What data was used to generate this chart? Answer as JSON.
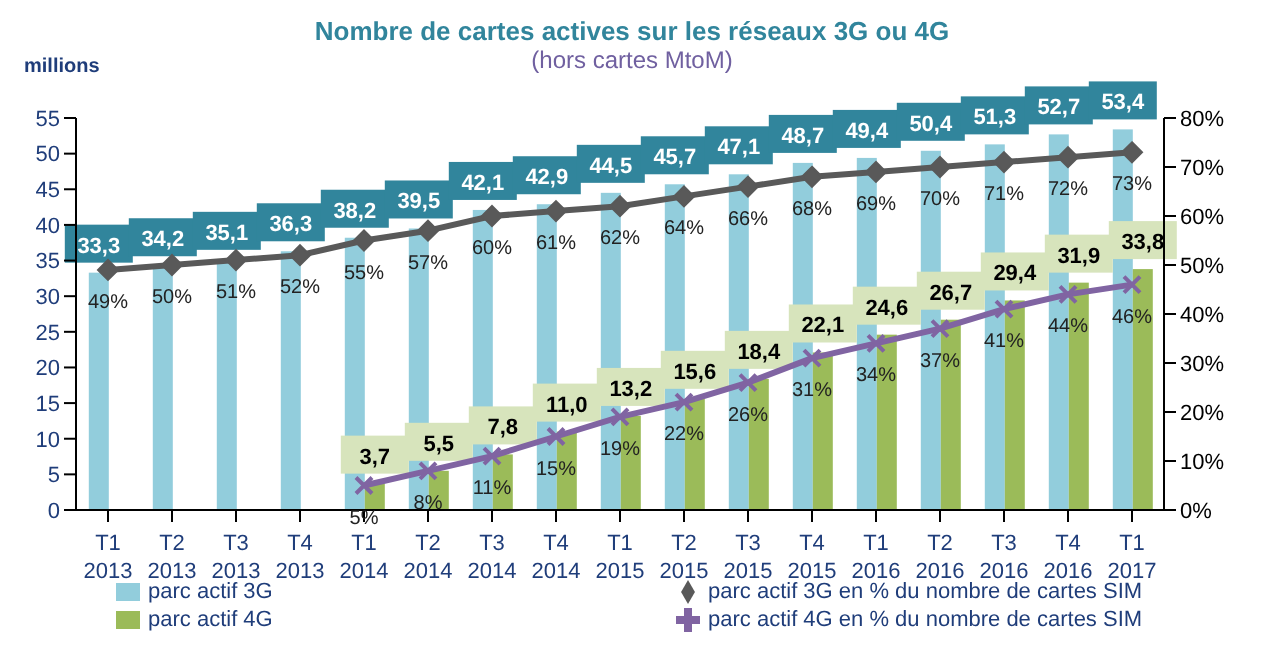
{
  "chart_data": {
    "type": "bar",
    "title": "Nombre de cartes actives sur les réseaux 3G ou 4G",
    "subtitle": "(hors cartes MtoM)",
    "ylabel": "millions",
    "categories": [
      "T1 2013",
      "T2 2013",
      "T3 2013",
      "T4 2013",
      "T1 2014",
      "T2 2014",
      "T3 2014",
      "T4 2014",
      "T1 2015",
      "T2 2015",
      "T3 2015",
      "T4 2015",
      "T1 2016",
      "T2 2016",
      "T3 2016",
      "T4 2016",
      "T1 2017"
    ],
    "series": [
      {
        "name": "parc actif 3G",
        "color": "#92cddc",
        "values": [
          33.3,
          34.2,
          35.1,
          36.3,
          38.2,
          39.5,
          42.1,
          42.9,
          44.5,
          45.7,
          47.1,
          48.7,
          49.4,
          50.4,
          51.3,
          52.7,
          53.4
        ],
        "value_labels": [
          "33,3",
          "34,2",
          "35,1",
          "36,3",
          "38,2",
          "39,5",
          "42,1",
          "42,9",
          "44,5",
          "45,7",
          "47,1",
          "48,7",
          "49,4",
          "50,4",
          "51,3",
          "52,7",
          "53,4"
        ]
      },
      {
        "name": "parc actif 4G",
        "color": "#9bbb59",
        "values": [
          null,
          null,
          null,
          null,
          3.7,
          5.5,
          7.8,
          11.0,
          13.2,
          15.6,
          18.4,
          22.1,
          24.6,
          26.7,
          29.4,
          31.9,
          33.8
        ],
        "value_labels": [
          null,
          null,
          null,
          null,
          "3,7",
          "5,5",
          "7,8",
          "11,0",
          "13,2",
          "15,6",
          "18,4",
          "22,1",
          "24,6",
          "26,7",
          "29,4",
          "31,9",
          "33,8"
        ]
      },
      {
        "name": "parc actif 3G en % du nombre de cartes SIM",
        "type": "line",
        "axis": "y2",
        "marker": "diamond",
        "color": "#595959",
        "values": [
          49,
          50,
          51,
          52,
          55,
          57,
          60,
          61,
          62,
          64,
          66,
          68,
          69,
          70,
          71,
          72,
          73
        ],
        "value_labels": [
          "49%",
          "50%",
          "51%",
          "52%",
          "55%",
          "57%",
          "60%",
          "61%",
          "62%",
          "64%",
          "66%",
          "68%",
          "69%",
          "70%",
          "71%",
          "72%",
          "73%"
        ]
      },
      {
        "name": "parc actif 4G en % du nombre de cartes SIM",
        "type": "line",
        "axis": "y2",
        "marker": "cross",
        "color": "#8064a2",
        "values": [
          null,
          null,
          null,
          null,
          5,
          8,
          11,
          15,
          19,
          22,
          26,
          31,
          34,
          37,
          41,
          44,
          46
        ],
        "value_labels": [
          null,
          null,
          null,
          null,
          "5%",
          "8%",
          "11%",
          "15%",
          "19%",
          "22%",
          "26%",
          "31%",
          "34%",
          "37%",
          "41%",
          "44%",
          "46%"
        ]
      }
    ],
    "ylim": [
      0,
      55
    ],
    "yticks": [
      0,
      5,
      10,
      15,
      20,
      25,
      30,
      35,
      40,
      45,
      50,
      55
    ],
    "y2lim": [
      0,
      80
    ],
    "y2ticks": [
      {
        "value": 0,
        "label": "0%"
      },
      {
        "value": 10,
        "label": "10%"
      },
      {
        "value": 20,
        "label": "20%"
      },
      {
        "value": 30,
        "label": "30%"
      },
      {
        "value": 40,
        "label": "40%"
      },
      {
        "value": 50,
        "label": "50%"
      },
      {
        "value": 60,
        "label": "60%"
      },
      {
        "value": 70,
        "label": "70%"
      },
      {
        "value": 80,
        "label": "80%"
      }
    ],
    "legend": "bottom"
  }
}
